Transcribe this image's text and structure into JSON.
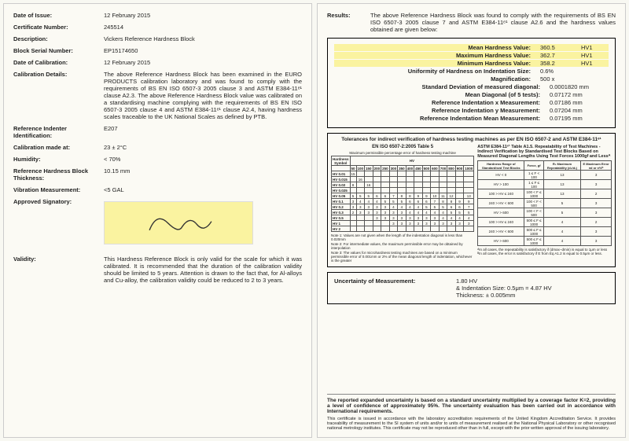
{
  "left": {
    "date_issue_label": "Date of Issue:",
    "date_issue": "12 February 2015",
    "cert_num_label": "Certificate Number:",
    "cert_num": "245514",
    "desc_label": "Description:",
    "desc": "Vickers Reference Hardness Block",
    "serial_label": "Block Serial Number:",
    "serial": "EP15174650",
    "date_cal_label": "Date of Calibration:",
    "date_cal": "12 February 2015",
    "cal_details_label": "Calibration Details:",
    "cal_details": "The above Reference Hardness Block has been examined in the EURO PRODUCTS calibration laboratory and was found to comply with the requirements of BS EN ISO 6507-3 2005 clause 3 and ASTM E384-11ᵉ¹ clause A2.3. The above Reference Hardness Block value was calibrated on a standardising machine complying with the requirements of BS EN ISO 6507-3 2005 clause 4 and ASTM E384-11ᵉ¹ clause A2.4, having hardness scales traceable to the UK National Scales as defined by PTB.",
    "indenter_label": "Reference Indenter Identification:",
    "indenter": "E207",
    "cal_at_label": "Calibration made at:",
    "cal_at": "23 ± 2°C",
    "humidity_label": "Humidity:",
    "humidity": "< 70%",
    "thick_label": "Reference Hardness Block Thickness:",
    "thick": "10.15 mm",
    "vib_label": "Vibration Measurement:",
    "vib": "<5 GAL",
    "sig_label": "Approved Signatory:",
    "validity_label": "Validity:",
    "validity": "This Hardness Reference Block is only valid for the scale for which it was calibrated. It is recommended that the duration of the calibration validity should be limited to 5 years. Attention is drawn to the fact that, for Al-alloys and Cu-alloy, the calibration validity could be reduced to 2 to 3 years."
  },
  "right": {
    "results_label": "Results:",
    "results_intro": "The above Reference Hardness Block was found to comply with the requirements of BS EN ISO 6507-3 2005 clause 7 and ASTM E384-11ᵉ¹ clause A2.6 and the hardness values obtained are given below:",
    "mean_label": "Mean Hardness Value:",
    "mean_val": "360.5",
    "mean_unit": "HV1",
    "max_label": "Maximum Hardness Value:",
    "max_val": "362.7",
    "max_unit": "HV1",
    "min_label": "Minimum Hardness Value:",
    "min_val": "358.2",
    "min_unit": "HV1",
    "unif_label": "Uniformity of Hardness on Indentation Size:",
    "unif_val": "0.6%",
    "mag_label": "Magnification:",
    "mag_val": "500 x",
    "sd_label": "Standard Deviation of measured diagonal:",
    "sd_val": "0.0001820 mm",
    "mdiag_label": "Mean Diagonal (of 5 tests):",
    "mdiag_val": "0.07172 mm",
    "refx_label": "Reference Indentation x Measurement:",
    "refx_val": "0.07186 mm",
    "refy_label": "Reference Indentation y Measurement:",
    "refy_val": "0.07204 mm",
    "refm_label": "Reference Indentation Mean Measurement:",
    "refm_val": "0.07195 mm",
    "tol_title": "Tolerances for indirect verification of hardness testing machines as per EN ISO 6507-2 and ASTM E384-11ᵉ¹",
    "tol_left_head": "EN ISO 6507-2:2005 Table 5",
    "tol_left_sub": "Maximum permissible percentage error of hardness testing machine",
    "tol_right_head": "ASTM E384-11ᵉ¹ Table A1.5. Repeatability of Test Machines - Indirect Verification by Standardised Test Blocks Based on Measured Diagonal Lengths Using Test Forces 1000gf and Lessᴬ",
    "tol_left_rows": [
      "HV 0.01",
      "HV 0.015",
      "HV 0.02",
      "HV 0.025",
      "HV 0.05",
      "HV 0.1",
      "HV 0.2",
      "HV 0.3",
      "HV 0.5",
      "HV 1",
      "HV 2"
    ],
    "tol_left_cols": [
      "50",
      "100",
      "150",
      "200",
      "250",
      "300",
      "350",
      "400",
      "450",
      "500",
      "600",
      "700",
      "800",
      "900",
      "1000"
    ],
    "tol_left_data": [
      [
        "15",
        "",
        "",
        "",
        "",
        "",
        "",
        "",
        "",
        "",
        "",
        "",
        "",
        "",
        ""
      ],
      [
        "",
        "16",
        "",
        "",
        "",
        "",
        "",
        "",
        "",
        "",
        "",
        "",
        "",
        "",
        ""
      ],
      [
        "8",
        "",
        "16",
        "",
        "",
        "",
        "",
        "",
        "",
        "",
        "",
        "",
        "",
        "",
        ""
      ],
      [
        "",
        "",
        "",
        "",
        "",
        "",
        "",
        "",
        "",
        "",
        "",
        "",
        "",
        "",
        ""
      ],
      [
        "5",
        "5",
        "5",
        "6",
        "6",
        "7",
        "8",
        "8",
        "9",
        "9",
        "10",
        "11",
        "12",
        "",
        "13"
      ],
      [
        "3",
        "4",
        "4",
        "4",
        "5",
        "5",
        "5",
        "6",
        "6",
        "6",
        "7",
        "8",
        "8",
        "9",
        "9"
      ],
      [
        "3",
        "3",
        "3",
        "3",
        "3",
        "4",
        "4",
        "4",
        "4",
        "5",
        "5",
        "5",
        "6",
        "6",
        "7"
      ],
      [
        "2",
        "3",
        "3",
        "3",
        "3",
        "3",
        "3",
        "4",
        "4",
        "4",
        "4",
        "4",
        "5",
        "5",
        "5"
      ],
      [
        "",
        "",
        "",
        "3",
        "3",
        "3",
        "3",
        "3",
        "3",
        "3",
        "3",
        "4",
        "4",
        "4",
        "4"
      ],
      [
        "",
        "",
        "",
        "",
        "",
        "3",
        "3",
        "3",
        "3",
        "3",
        "3",
        "3",
        "3",
        "3",
        "3"
      ],
      [
        "",
        "",
        "",
        "",
        "",
        "",
        "",
        "",
        "",
        "",
        "",
        "",
        "",
        "",
        ""
      ]
    ],
    "tol_left_note1": "Note 1: Values are not given when the length of the indentation diagonal is less than 0.020mm",
    "tol_left_note2": "Note 2: For intermediate values, the maximum permissible error may be obtained by interpolation",
    "tol_left_note3": "Note 3: The values for microhardness testing machines are based on a minimum permissible error of 0.001mm or 2% of the mean diagonal length of indentation, whichever is the greater",
    "tol_right_cols": [
      "Hardness Range of Standardised Test Blocks",
      "Force, gf",
      "R₁ Maximum Repeatability (d₂/d₁)",
      "E Maximum Error ±d or ±%ᴮ"
    ],
    "tol_right_rows": [
      [
        "HV < 0",
        "1 ≤ F < 100",
        "13",
        "3"
      ],
      [
        "HV > 100",
        "1 ≤ F ≤ 100",
        "13",
        "3"
      ],
      [
        "100 > HV ≤ 240",
        "100 < F ≤ 1000",
        "13",
        "2"
      ],
      [
        "240 > HV < 600",
        "100 < F < 500",
        "5",
        "3"
      ],
      [
        "HV > 600",
        "100 < F < 500",
        "5",
        "3"
      ],
      [
        "100 > HV ≤ 240",
        "500 ≤ F ≤ 1000",
        "4",
        "2"
      ],
      [
        "240 > HV < 600",
        "500 ≤ F ≤ 1000",
        "4",
        "3"
      ],
      [
        "HV > 600",
        "500 ≤ F ≤ 1000",
        "4",
        "3"
      ]
    ],
    "tol_right_noteA": "ᴬIn all cases, the repeatability is satisfactory if (dmax−dmin) is equal to 1μm or less",
    "tol_right_noteB": "ᴮIn all cases, the error is satisfactory if E from Eq A1.2 is equal to 0.5μm or less.",
    "unc_label": "Uncertainty of Measurement:",
    "unc_hv": "1.80 HV",
    "unc_indent": "& Indentation Size: 0.5μm = 4.87 HV",
    "unc_thick": "Thickness: ± 0.005mm",
    "footer_bold": "The reported expanded uncertainty is based on a standard uncertainty multiplied by a coverage factor K=2, providing a level of confidence of approximately 95%. The uncertainty evaluation has been carried out in accordance with International requirements.",
    "footer_small": "This certificate is issued in accordance with the laboratory accreditation requirements of the United Kingdom Accreditation Service. It provides traceability of measurement to the SI system of units and/or to units of measurement realised at the National Physical Laboratory or other recognised national metrology institutes. This certificate may not be reproduced other than in full, except with the prior written approval of the issuing laboratory."
  },
  "colors": {
    "highlight": "#faf3a0",
    "page_bg": "#fbfaf4",
    "border": "#000000"
  }
}
